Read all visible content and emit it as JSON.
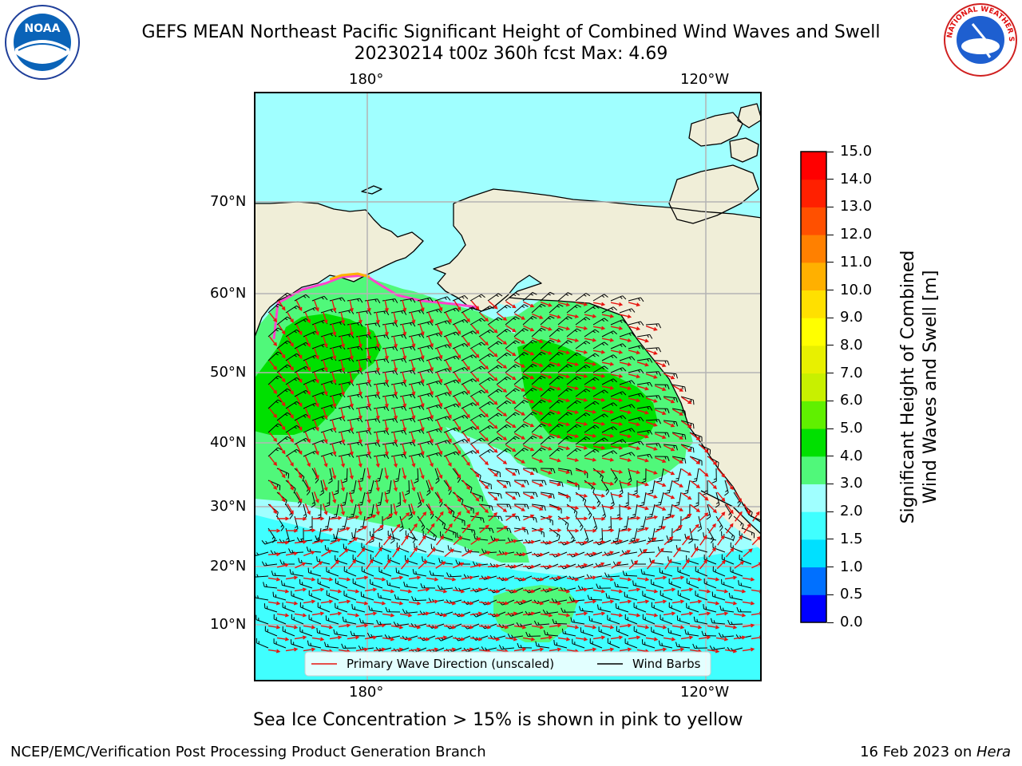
{
  "title": {
    "line1": "GEFS MEAN Northeast Pacific Significant Height of Combined Wind Waves and Swell",
    "line2": "20230214 t00z 360h fcst   Max: 4.69"
  },
  "logos": {
    "left": {
      "icon": "noaa-logo",
      "text": "NOAA"
    },
    "right": {
      "icon": "nws-logo",
      "text": "NATIONAL WEATHER SERVICE"
    }
  },
  "axes": {
    "lon_ticks": [
      "180°",
      "120°W"
    ],
    "lat_ticks": [
      "70°N",
      "60°N",
      "50°N",
      "40°N",
      "30°N",
      "20°N",
      "10°N"
    ]
  },
  "legend": {
    "wave_label": "Primary Wave Direction (unscaled)",
    "wind_label": "Wind Barbs",
    "wave_color": "#e8140f",
    "wind_color": "#000000"
  },
  "colorbar": {
    "label_line1": "Significant Height of Combined",
    "label_line2": "Wind Waves and Swell [m]",
    "ticks": [
      "0.0",
      "0.5",
      "1.0",
      "1.5",
      "2.0",
      "3.0",
      "4.0",
      "5.0",
      "6.0",
      "7.0",
      "8.0",
      "9.0",
      "10.0",
      "11.0",
      "12.0",
      "13.0",
      "14.0",
      "15.0"
    ],
    "colors": [
      "#0000ff",
      "#0070ff",
      "#00e0ff",
      "#40ffff",
      "#a0ffff",
      "#50f87a",
      "#00e000",
      "#60f000",
      "#c8f000",
      "#e8f000",
      "#ffff00",
      "#ffe000",
      "#ffb000",
      "#ff8000",
      "#ff5000",
      "#ff2000",
      "#ff0000"
    ]
  },
  "ice_note": "Sea Ice Concentration > 15% is shown in pink to yellow",
  "footer": {
    "left": "NCEP/EMC/Verification Post Processing Product Generation Branch",
    "right_date": "16 Feb 2023 on ",
    "right_host": "Hera"
  },
  "colors": {
    "land": "#f0eed8",
    "grid": "#b4b4b4",
    "sea_low": "#a0ffff",
    "sea_mid": "#40ffff",
    "wave_3_4": "#50f87a",
    "wave_4_5": "#00e000"
  }
}
